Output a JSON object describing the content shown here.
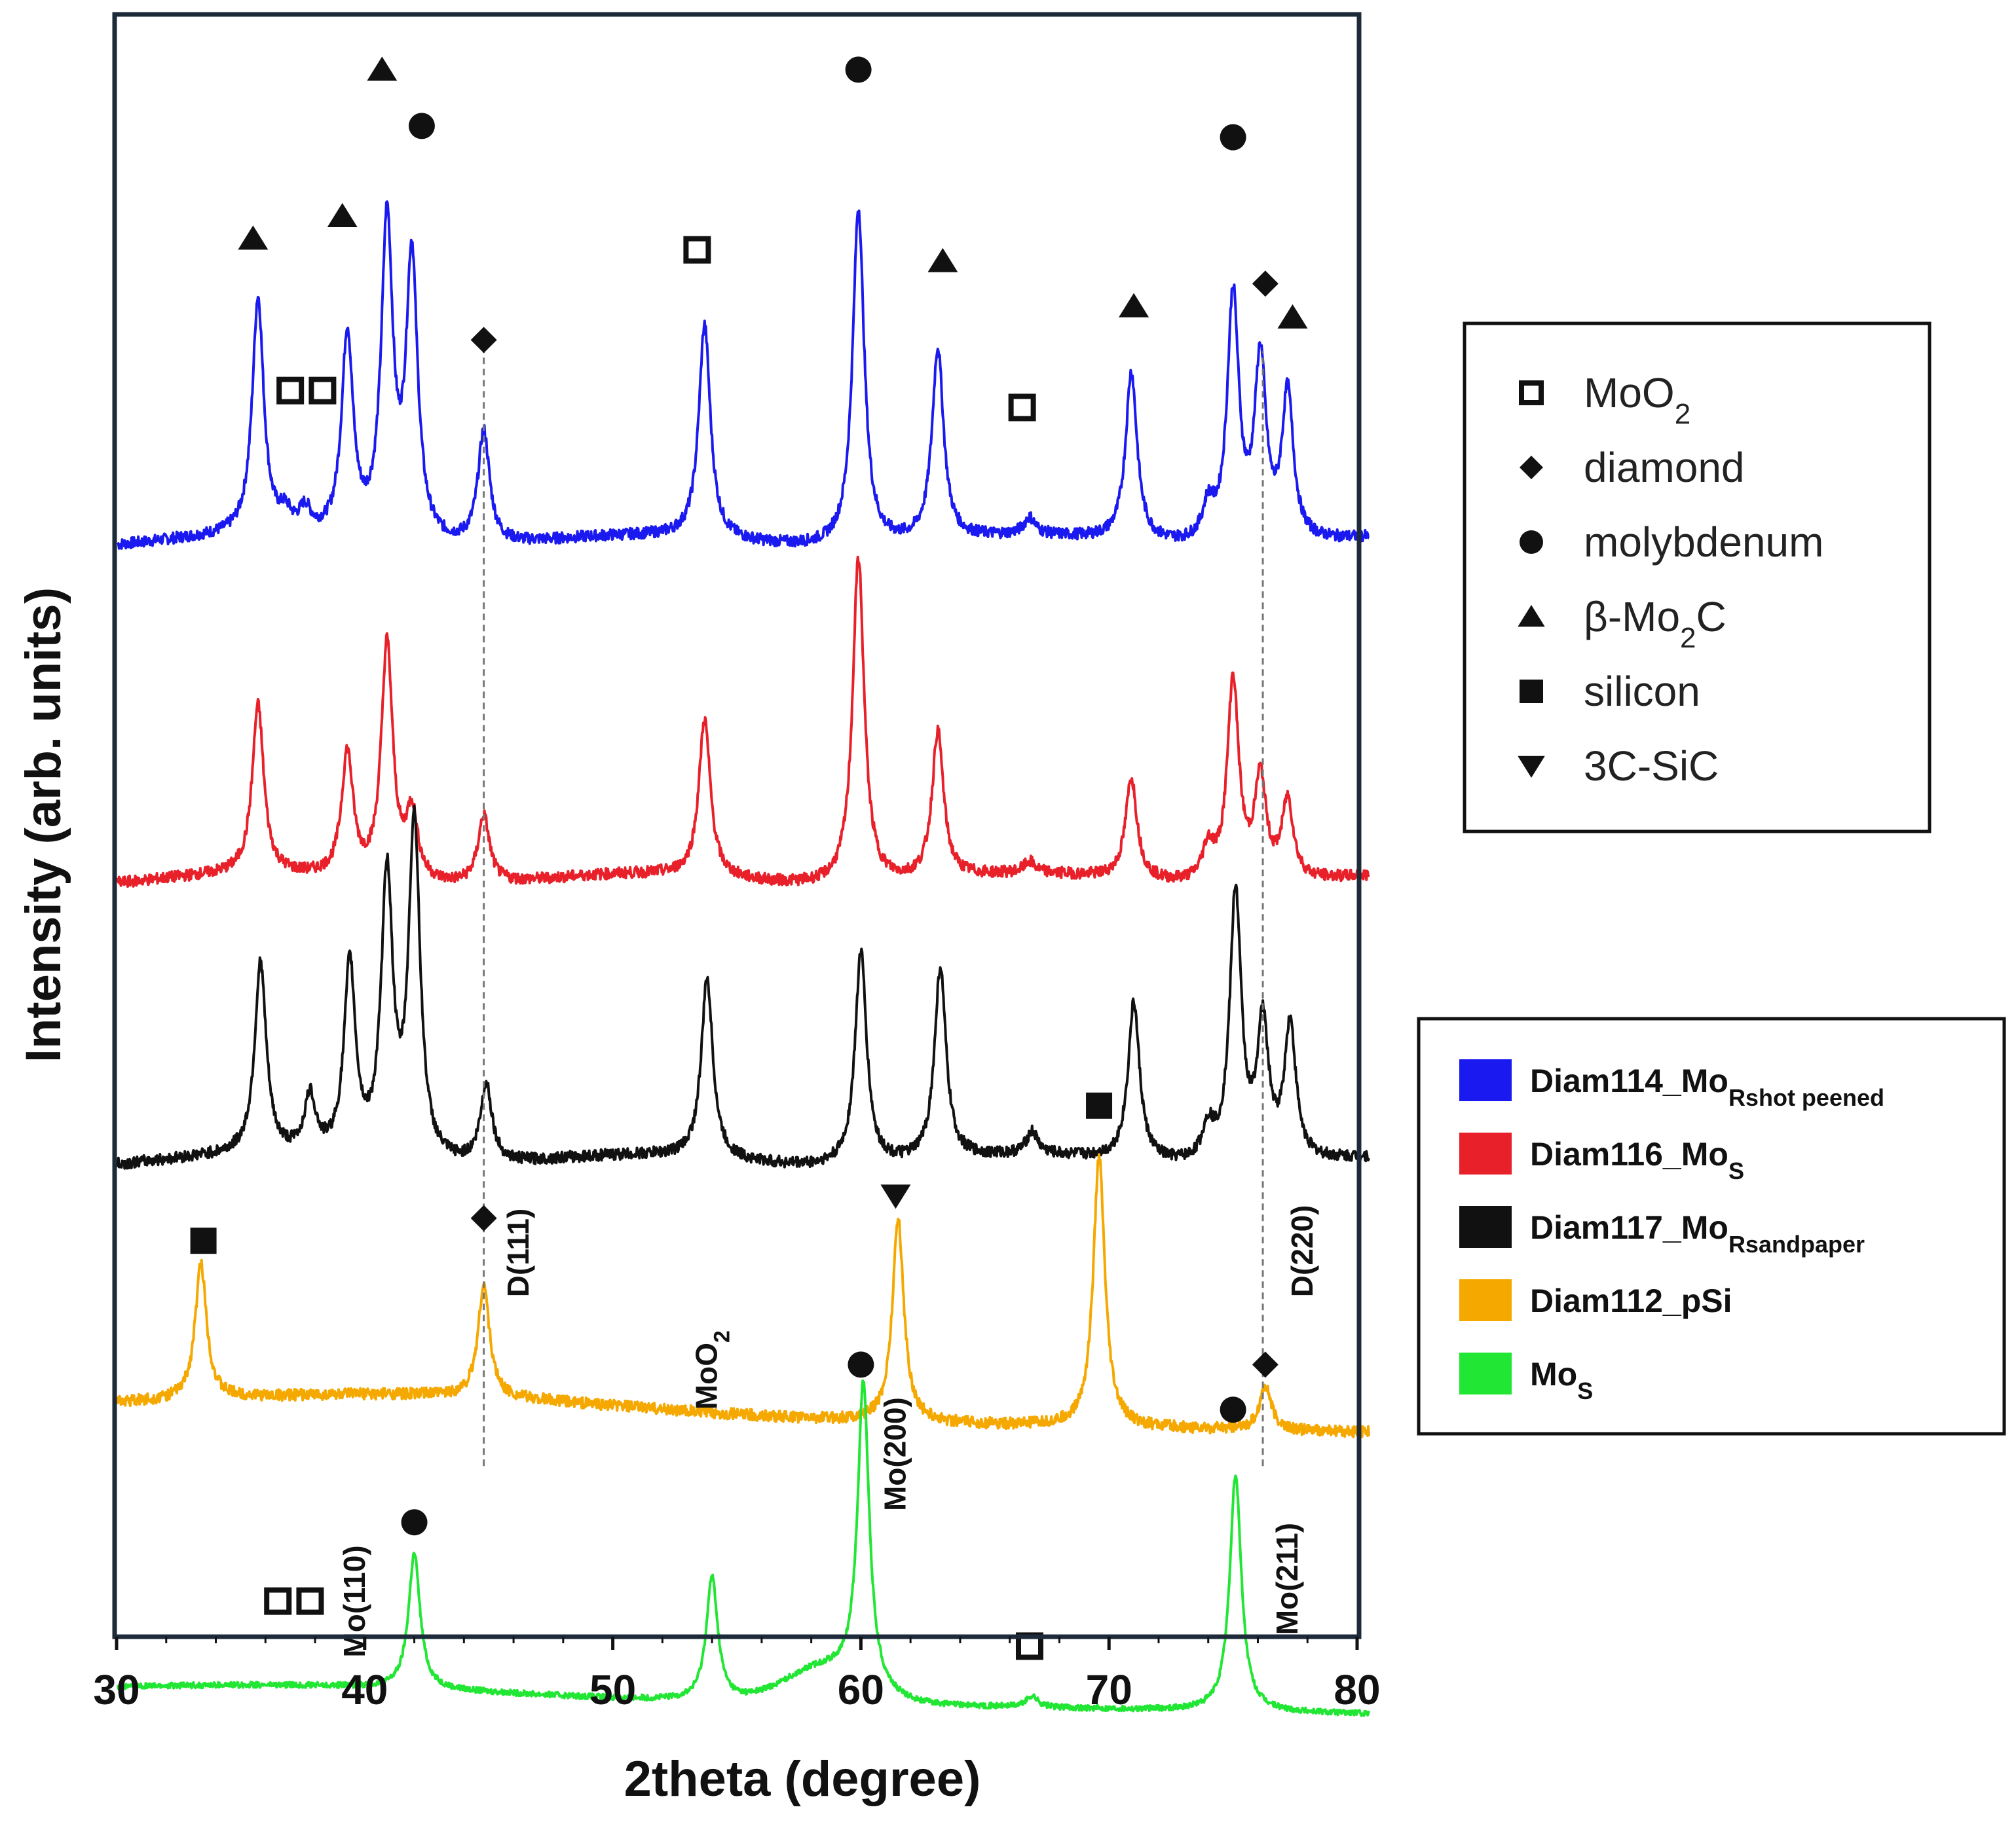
{
  "chart_data": {
    "type": "line",
    "title": "",
    "xlabel": "2theta (degree)",
    "ylabel": "Intensity (arb. units)",
    "xlim": [
      30,
      80
    ],
    "xticks": [
      30,
      40,
      50,
      60,
      70,
      80
    ],
    "y_ticks_shown": false,
    "grid": false,
    "series": [
      {
        "name": "Diam114_Mo",
        "name_sub": "Rshot peened",
        "color": "#1a1af0",
        "baseline": 9.6,
        "peaks": [
          [
            35.7,
            2.1
          ],
          [
            36.8,
            0.15
          ],
          [
            37.6,
            0.2
          ],
          [
            39.3,
            1.8
          ],
          [
            40.9,
            2.8
          ],
          [
            41.9,
            2.5
          ],
          [
            44.8,
            1.0
          ],
          [
            53.7,
            1.9
          ],
          [
            59.9,
            3.0
          ],
          [
            63.1,
            1.7
          ],
          [
            66.8,
            0.15
          ],
          [
            70.9,
            1.5
          ],
          [
            74.0,
            0.3
          ],
          [
            75.0,
            2.2
          ],
          [
            76.1,
            1.6
          ],
          [
            77.2,
            1.3
          ]
        ]
      },
      {
        "name": "Diam116_Mo",
        "name_sub": "S",
        "color": "#e8202a",
        "baseline": 6.6,
        "peaks": [
          [
            35.7,
            1.5
          ],
          [
            39.3,
            1.1
          ],
          [
            40.9,
            2.1
          ],
          [
            41.9,
            0.6
          ],
          [
            44.8,
            0.6
          ],
          [
            53.7,
            1.4
          ],
          [
            59.9,
            2.9
          ],
          [
            63.1,
            1.3
          ],
          [
            66.8,
            0.1
          ],
          [
            70.9,
            0.9
          ],
          [
            74.0,
            0.3
          ],
          [
            75.0,
            1.8
          ],
          [
            76.1,
            0.9
          ],
          [
            77.2,
            0.7
          ]
        ]
      },
      {
        "name": "Diam117_Mo",
        "name_sub": "Rsandpaper",
        "color": "#111111",
        "baseline": 4.1,
        "peaks": [
          [
            35.8,
            1.7
          ],
          [
            37.8,
            0.5
          ],
          [
            39.4,
            1.7
          ],
          [
            40.9,
            2.5
          ],
          [
            42.0,
            3.0
          ],
          [
            44.9,
            0.7
          ],
          [
            53.8,
            1.6
          ],
          [
            60.0,
            1.9
          ],
          [
            63.2,
            1.7
          ],
          [
            66.9,
            0.2
          ],
          [
            71.0,
            1.4
          ],
          [
            74.0,
            0.3
          ],
          [
            75.1,
            2.4
          ],
          [
            76.2,
            1.2
          ],
          [
            77.3,
            1.2
          ]
        ]
      },
      {
        "name": "Diam112_pSi",
        "name_sub": "",
        "color": "#f5a800",
        "baseline": 1.9,
        "peaks": [
          [
            33.4,
            1.2
          ],
          [
            44.8,
            1.0
          ],
          [
            61.5,
            1.8
          ],
          [
            69.6,
            2.4
          ],
          [
            76.3,
            0.4
          ]
        ]
      },
      {
        "name": "Mo",
        "name_sub": "S",
        "color": "#22e634",
        "baseline": -0.6,
        "peaks": [
          [
            42.0,
            1.2
          ],
          [
            54.0,
            1.1
          ],
          [
            60.1,
            2.7
          ],
          [
            66.9,
            0.1
          ],
          [
            75.1,
            2.1
          ]
        ]
      }
    ],
    "phase_legend": [
      {
        "marker": "open-square",
        "label": "MoO",
        "sub": "2",
        "suffix": ""
      },
      {
        "marker": "diamond",
        "label": "diamond",
        "sub": "",
        "suffix": ""
      },
      {
        "marker": "circle",
        "label": "molybdenum",
        "sub": "",
        "suffix": ""
      },
      {
        "marker": "triangle-up",
        "label": "β-Mo",
        "sub": "2",
        "suffix": "C"
      },
      {
        "marker": "square",
        "label": "silicon",
        "sub": "",
        "suffix": ""
      },
      {
        "marker": "triangle-down",
        "label": "3C-SiC",
        "sub": "",
        "suffix": ""
      }
    ],
    "dashed_reference_lines": [
      44.8,
      76.2
    ],
    "peak_labels": [
      {
        "text": "D(111)",
        "x": 46.6,
        "y": 2.9
      },
      {
        "text": "D(220)",
        "x": 78.2,
        "y": 2.9
      },
      {
        "text": "Mo(110)",
        "x": 40.0,
        "y": -0.3
      },
      {
        "text": "MoO",
        "sub": "2",
        "x": 54.2,
        "y": 1.9
      },
      {
        "text": "Mo(200)",
        "x": 61.8,
        "y": 1.0
      },
      {
        "text": "Mo(211)",
        "x": 77.6,
        "y": -0.1
      }
    ],
    "markers": [
      {
        "shape": "triangle-up",
        "x": 35.5,
        "y": 12.3
      },
      {
        "shape": "triangle-up",
        "x": 39.1,
        "y": 12.5
      },
      {
        "shape": "triangle-up",
        "x": 40.7,
        "y": 13.8
      },
      {
        "shape": "circle",
        "x": 42.3,
        "y": 13.3
      },
      {
        "shape": "open-square",
        "x": 37.0,
        "y": 10.95
      },
      {
        "shape": "open-square",
        "x": 38.3,
        "y": 10.95
      },
      {
        "shape": "diamond",
        "x": 44.8,
        "y": 11.4
      },
      {
        "shape": "open-square",
        "x": 53.4,
        "y": 12.2
      },
      {
        "shape": "circle",
        "x": 59.9,
        "y": 13.8
      },
      {
        "shape": "triangle-up",
        "x": 63.3,
        "y": 12.1
      },
      {
        "shape": "open-square",
        "x": 66.5,
        "y": 10.8
      },
      {
        "shape": "triangle-up",
        "x": 71.0,
        "y": 11.7
      },
      {
        "shape": "circle",
        "x": 75.0,
        "y": 13.2
      },
      {
        "shape": "diamond",
        "x": 76.3,
        "y": 11.9
      },
      {
        "shape": "triangle-up",
        "x": 77.4,
        "y": 11.6
      },
      {
        "shape": "square",
        "x": 33.5,
        "y": 3.4
      },
      {
        "shape": "diamond",
        "x": 44.8,
        "y": 3.6
      },
      {
        "shape": "triangle-down",
        "x": 61.4,
        "y": 3.8
      },
      {
        "shape": "square",
        "x": 69.6,
        "y": 4.6
      },
      {
        "shape": "diamond",
        "x": 76.3,
        "y": 2.3
      },
      {
        "shape": "circle",
        "x": 42.0,
        "y": 0.9
      },
      {
        "shape": "open-square",
        "x": 36.5,
        "y": 0.2
      },
      {
        "shape": "open-square",
        "x": 37.8,
        "y": 0.2
      },
      {
        "shape": "circle",
        "x": 60.0,
        "y": 2.3
      },
      {
        "shape": "open-square",
        "x": 66.8,
        "y": -0.2
      },
      {
        "shape": "circle",
        "x": 75.0,
        "y": 1.9
      }
    ]
  }
}
